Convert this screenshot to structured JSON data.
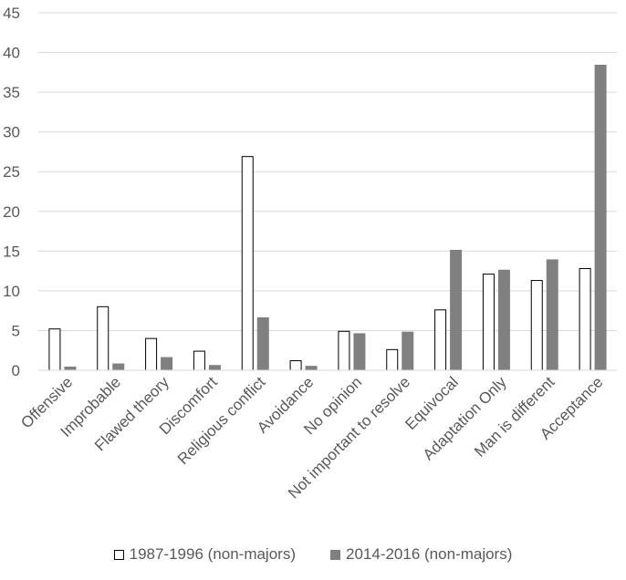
{
  "chart_data": {
    "type": "bar",
    "categories": [
      "Offensive",
      "Improbable",
      "Flawed theory",
      "Discomfort",
      "Religious conflict",
      "Avoidance",
      "No opinion",
      "Not important to resolve",
      "Equivocal",
      "Adaptation Only",
      "Man is different",
      "Acceptance"
    ],
    "series": [
      {
        "name": "1987-1996 (non-majors)",
        "values": [
          5.2,
          8.0,
          4.0,
          2.4,
          26.9,
          1.2,
          4.9,
          2.6,
          7.6,
          12.1,
          11.3,
          12.8
        ],
        "fill": "#ffffff",
        "stroke": "#000000"
      },
      {
        "name": "2014-2016 (non-majors)",
        "values": [
          0.4,
          0.8,
          1.6,
          0.6,
          6.6,
          0.5,
          4.6,
          4.8,
          15.1,
          12.6,
          13.9,
          38.4
        ],
        "fill": "#808080",
        "stroke": "#808080"
      }
    ],
    "ylim": [
      0,
      45
    ],
    "yticks": [
      0,
      5,
      10,
      15,
      20,
      25,
      30,
      35,
      40,
      45
    ],
    "grid": true,
    "legend_position": "bottom"
  }
}
